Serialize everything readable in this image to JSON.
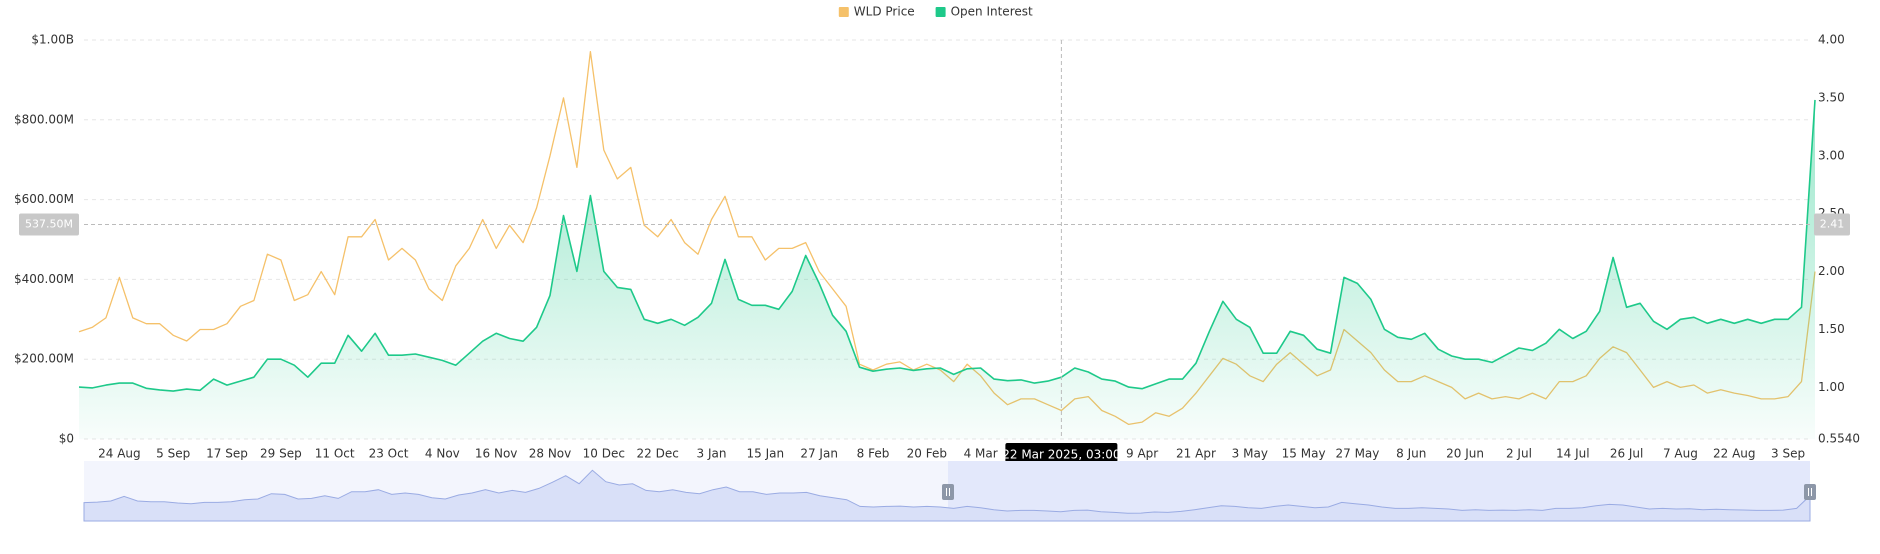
{
  "chart_data": {
    "type": "line",
    "categories": [
      null,
      null,
      null,
      "24 Aug",
      null,
      null,
      null,
      "5 Sep",
      null,
      null,
      null,
      "17 Sep",
      null,
      null,
      null,
      "29 Sep",
      null,
      null,
      null,
      "11 Oct",
      null,
      null,
      null,
      "23 Oct",
      null,
      null,
      null,
      "4 Nov",
      null,
      null,
      null,
      "16 Nov",
      null,
      null,
      null,
      "28 Nov",
      null,
      null,
      null,
      "10 Dec",
      null,
      null,
      null,
      "22 Dec",
      null,
      null,
      null,
      "3 Jan",
      null,
      null,
      null,
      "15 Jan",
      null,
      null,
      null,
      "27 Jan",
      null,
      null,
      null,
      "8 Feb",
      null,
      null,
      null,
      "20 Feb",
      null,
      null,
      null,
      "4 Mar",
      null,
      null,
      null,
      null,
      null,
      null,
      null,
      null,
      null,
      null,
      null,
      "9 Apr",
      null,
      null,
      null,
      "21 Apr",
      null,
      null,
      null,
      "3 May",
      null,
      null,
      null,
      "15 May",
      null,
      null,
      null,
      "27 May",
      null,
      null,
      null,
      "8 Jun",
      null,
      null,
      null,
      "20 Jun",
      null,
      null,
      null,
      "2 Jul",
      null,
      null,
      null,
      "14 Jul",
      null,
      null,
      null,
      "26 Jul",
      null,
      null,
      null,
      "7 Aug",
      null,
      null,
      null,
      "22 Aug",
      null,
      null,
      null,
      "3 Sep",
      null,
      null
    ],
    "series": [
      {
        "name": "WLD Price",
        "color": "#f5c16a",
        "axis": "y2",
        "values": [
          1.48,
          1.52,
          1.6,
          1.95,
          1.6,
          1.55,
          1.55,
          1.45,
          1.4,
          1.5,
          1.5,
          1.55,
          1.7,
          1.75,
          2.15,
          2.1,
          1.75,
          1.8,
          2.0,
          1.8,
          2.3,
          2.3,
          2.45,
          2.1,
          2.2,
          2.1,
          1.85,
          1.75,
          2.05,
          2.2,
          2.45,
          2.2,
          2.4,
          2.25,
          2.55,
          3.0,
          3.5,
          2.9,
          3.9,
          3.05,
          2.8,
          2.9,
          2.4,
          2.3,
          2.45,
          2.25,
          2.15,
          2.45,
          2.65,
          2.3,
          2.3,
          2.1,
          2.2,
          2.2,
          2.25,
          2.0,
          1.85,
          1.7,
          1.2,
          1.15,
          1.2,
          1.22,
          1.15,
          1.2,
          1.15,
          1.05,
          1.2,
          1.1,
          0.95,
          0.85,
          0.9,
          0.9,
          0.85,
          0.8,
          0.9,
          0.92,
          0.8,
          0.75,
          0.68,
          0.7,
          0.78,
          0.75,
          0.82,
          0.95,
          1.1,
          1.25,
          1.2,
          1.1,
          1.05,
          1.2,
          1.3,
          1.2,
          1.1,
          1.15,
          1.5,
          1.4,
          1.3,
          1.15,
          1.05,
          1.05,
          1.1,
          1.05,
          1.0,
          0.9,
          0.95,
          0.9,
          0.92,
          0.9,
          0.95,
          0.9,
          1.05,
          1.05,
          1.1,
          1.25,
          1.35,
          1.3,
          1.15,
          1.0,
          1.05,
          1.0,
          1.02,
          0.95,
          0.98,
          0.95,
          0.93,
          0.9,
          0.9,
          0.92,
          1.05,
          2.0
        ]
      },
      {
        "name": "Open Interest",
        "color": "#1ec98a",
        "axis": "y",
        "values": [
          130000000.0,
          128000000.0,
          135000000.0,
          140000000.0,
          140000000.0,
          127000000.0,
          123000000.0,
          120000000.0,
          125000000.0,
          122000000.0,
          150000000.0,
          135000000.0,
          145000000.0,
          155000000.0,
          200000000.0,
          200000000.0,
          185000000.0,
          155000000.0,
          190000000.0,
          190000000.0,
          260000000.0,
          220000000.0,
          265000000.0,
          210000000.0,
          210000000.0,
          213000000.0,
          205000000.0,
          197000000.0,
          185000000.0,
          215000000.0,
          245000000.0,
          265000000.0,
          252000000.0,
          245000000.0,
          280000000.0,
          360000000.0,
          560000000.0,
          420000000.0,
          610000000.0,
          420000000.0,
          380000000.0,
          375000000.0,
          300000000.0,
          290000000.0,
          300000000.0,
          285000000.0,
          305000000.0,
          340000000.0,
          450000000.0,
          350000000.0,
          335000000.0,
          335000000.0,
          325000000.0,
          370000000.0,
          460000000.0,
          390000000.0,
          310000000.0,
          270000000.0,
          180000000.0,
          170000000.0,
          175000000.0,
          178000000.0,
          172000000.0,
          176000000.0,
          178000000.0,
          162000000.0,
          176000000.0,
          178000000.0,
          150000000.0,
          146000000.0,
          148000000.0,
          140000000.0,
          145000000.0,
          155000000.0,
          178000000.0,
          168000000.0,
          150000000.0,
          145000000.0,
          130000000.0,
          126000000.0,
          138000000.0,
          150000000.0,
          150000000.0,
          190000000.0,
          270000000.0,
          345000000.0,
          300000000.0,
          280000000.0,
          215000000.0,
          215000000.0,
          270000000.0,
          260000000.0,
          225000000.0,
          215000000.0,
          405000000.0,
          390000000.0,
          350000000.0,
          275000000.0,
          255000000.0,
          250000000.0,
          265000000.0,
          225000000.0,
          208000000.0,
          200000000.0,
          200000000.0,
          192000000.0,
          210000000.0,
          228000000.0,
          222000000.0,
          240000000.0,
          275000000.0,
          252000000.0,
          270000000.0,
          320000000.0,
          455000000.0,
          330000000.0,
          340000000.0,
          295000000.0,
          275000000.0,
          300000000.0,
          305000000.0,
          290000000.0,
          300000000.0,
          290000000.0,
          300000000.0,
          290000000.0,
          300000000.0,
          300000000.0,
          330000000.0,
          850000000.0
        ]
      }
    ],
    "ylim": [
      0,
      1000000000
    ],
    "yticks": [
      {
        "value": 0,
        "label": "$0"
      },
      {
        "value": 200000000,
        "label": "$200.00M"
      },
      {
        "value": 400000000,
        "label": "$400.00M"
      },
      {
        "value": 600000000,
        "label": "$600.00M"
      },
      {
        "value": 800000000,
        "label": "$800.00M"
      },
      {
        "value": 1000000000,
        "label": "$1.00B"
      }
    ],
    "y2lim": [
      0.554,
      4
    ],
    "y2ticks": [
      {
        "value": 0.554,
        "label": "0.5540"
      },
      {
        "value": 1,
        "label": "1.00"
      },
      {
        "value": 1.5,
        "label": "1.50"
      },
      {
        "value": 2,
        "label": "2.00"
      },
      {
        "value": 2.5,
        "label": "2.50"
      },
      {
        "value": 3,
        "label": "3.00"
      },
      {
        "value": 3.5,
        "label": "3.50"
      },
      {
        "value": 4,
        "label": "4.00"
      }
    ],
    "grid": true,
    "legend": "top",
    "crosshair": {
      "x_label": "22 Mar 2025, 03:00",
      "y": {
        "value": 537500000,
        "label": "537.50M"
      },
      "y2_label": "2.41"
    }
  }
}
